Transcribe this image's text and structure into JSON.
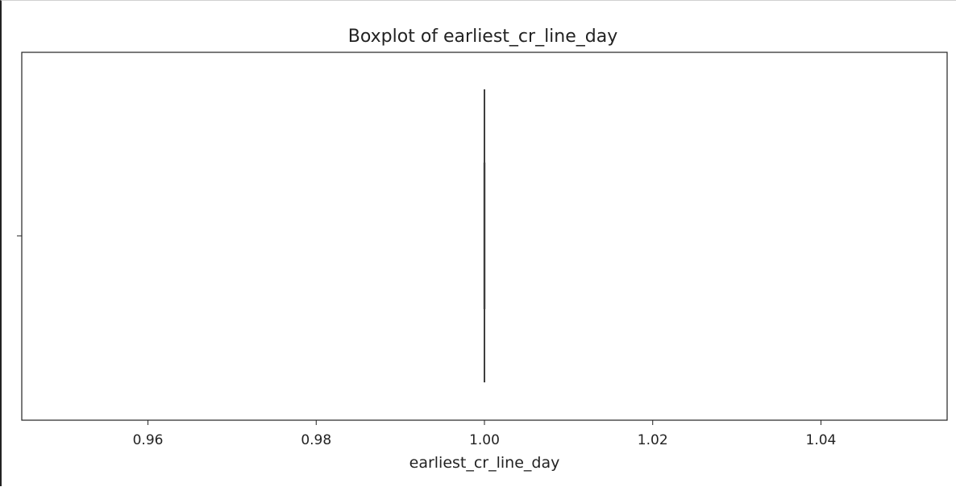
{
  "chart_data": {
    "type": "boxplot",
    "title": "Boxplot of earliest_cr_line_day",
    "xlabel": "earliest_cr_line_day",
    "ylabel": "",
    "xlim": [
      0.945,
      1.055
    ],
    "xticks": [
      0.96,
      0.98,
      1.0,
      1.02,
      1.04
    ],
    "xtick_labels": [
      "0.96",
      "0.98",
      "1.00",
      "1.02",
      "1.04"
    ],
    "grid": false,
    "box": {
      "min": 1.0,
      "q1": 1.0,
      "median": 1.0,
      "q3": 1.0,
      "max": 1.0
    },
    "colors": {
      "box_line": "#3f3f3f",
      "axes": "#222222"
    }
  }
}
